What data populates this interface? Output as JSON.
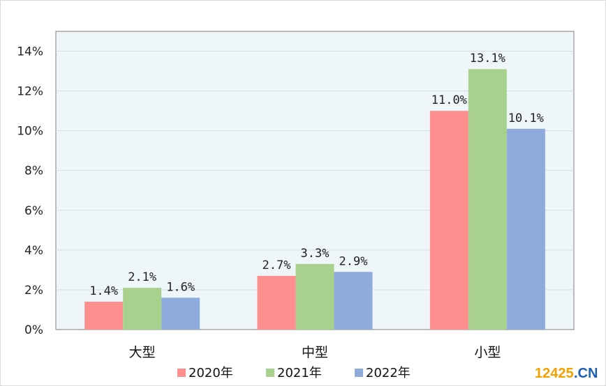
{
  "chart_data": {
    "type": "bar",
    "categories": [
      "大型",
      "中型",
      "小型"
    ],
    "series": [
      {
        "name": "2020年",
        "values": [
          1.4,
          2.7,
          11.0
        ],
        "labels": [
          "1.4%",
          "2.7%",
          "11.0%"
        ],
        "color": "#ff8f8f"
      },
      {
        "name": "2021年",
        "values": [
          2.1,
          3.3,
          13.1
        ],
        "labels": [
          "2.1%",
          "3.3%",
          "13.1%"
        ],
        "color": "#a9d18e"
      },
      {
        "name": "2022年",
        "values": [
          1.6,
          2.9,
          10.1
        ],
        "labels": [
          "1.6%",
          "2.9%",
          "10.1%"
        ],
        "color": "#8faadc"
      }
    ],
    "ylim": [
      0,
      15
    ],
    "yticks": [
      0,
      2,
      4,
      6,
      8,
      10,
      12,
      14
    ],
    "ytick_labels": [
      "0%",
      "2%",
      "4%",
      "6%",
      "8%",
      "10%",
      "12%",
      "14%"
    ],
    "plot_background": "#eef6fa",
    "grid": true,
    "legend_position": "bottom"
  },
  "watermark": {
    "part1": "12425",
    "part2": ".CN"
  }
}
